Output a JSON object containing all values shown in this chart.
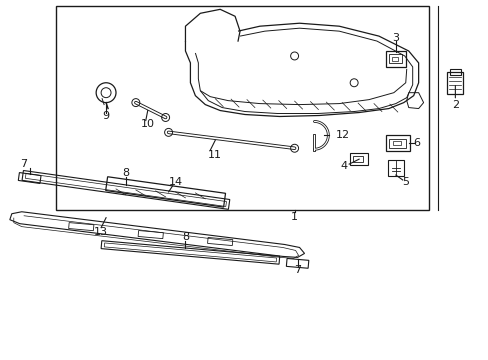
{
  "bg_color": "#ffffff",
  "line_color": "#1a1a1a",
  "text_color": "#1a1a1a",
  "figsize": [
    4.89,
    3.6
  ],
  "dpi": 100
}
